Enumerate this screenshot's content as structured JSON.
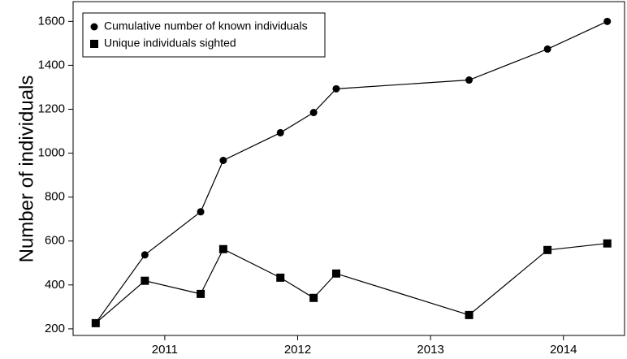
{
  "chart_data": {
    "type": "line",
    "y_label": "Number of individuals",
    "x": [
      2010.48,
      2010.85,
      2011.27,
      2011.44,
      2011.87,
      2012.12,
      2012.29,
      2013.29,
      2013.88,
      2014.33
    ],
    "series": [
      {
        "name": "Cumulative number of known individuals",
        "color": "#000000",
        "marker": "circle",
        "values": [
          226,
          537,
          733,
          967,
          1093,
          1185,
          1293,
          1333,
          1474,
          1600
        ]
      },
      {
        "name": "Unique individuals sighted",
        "color": "#000000",
        "marker": "square",
        "values": [
          226,
          419,
          359,
          563,
          433,
          341,
          452,
          263,
          559,
          589
        ]
      }
    ],
    "xlim": [
      2010.31,
      2014.46
    ],
    "xticks": [
      2011,
      2012,
      2013,
      2014
    ],
    "ylim": [
      170,
      1690
    ],
    "yticks": [
      200,
      400,
      600,
      800,
      1000,
      1200,
      1400,
      1600
    ],
    "grid": false,
    "legend": "upper left"
  }
}
